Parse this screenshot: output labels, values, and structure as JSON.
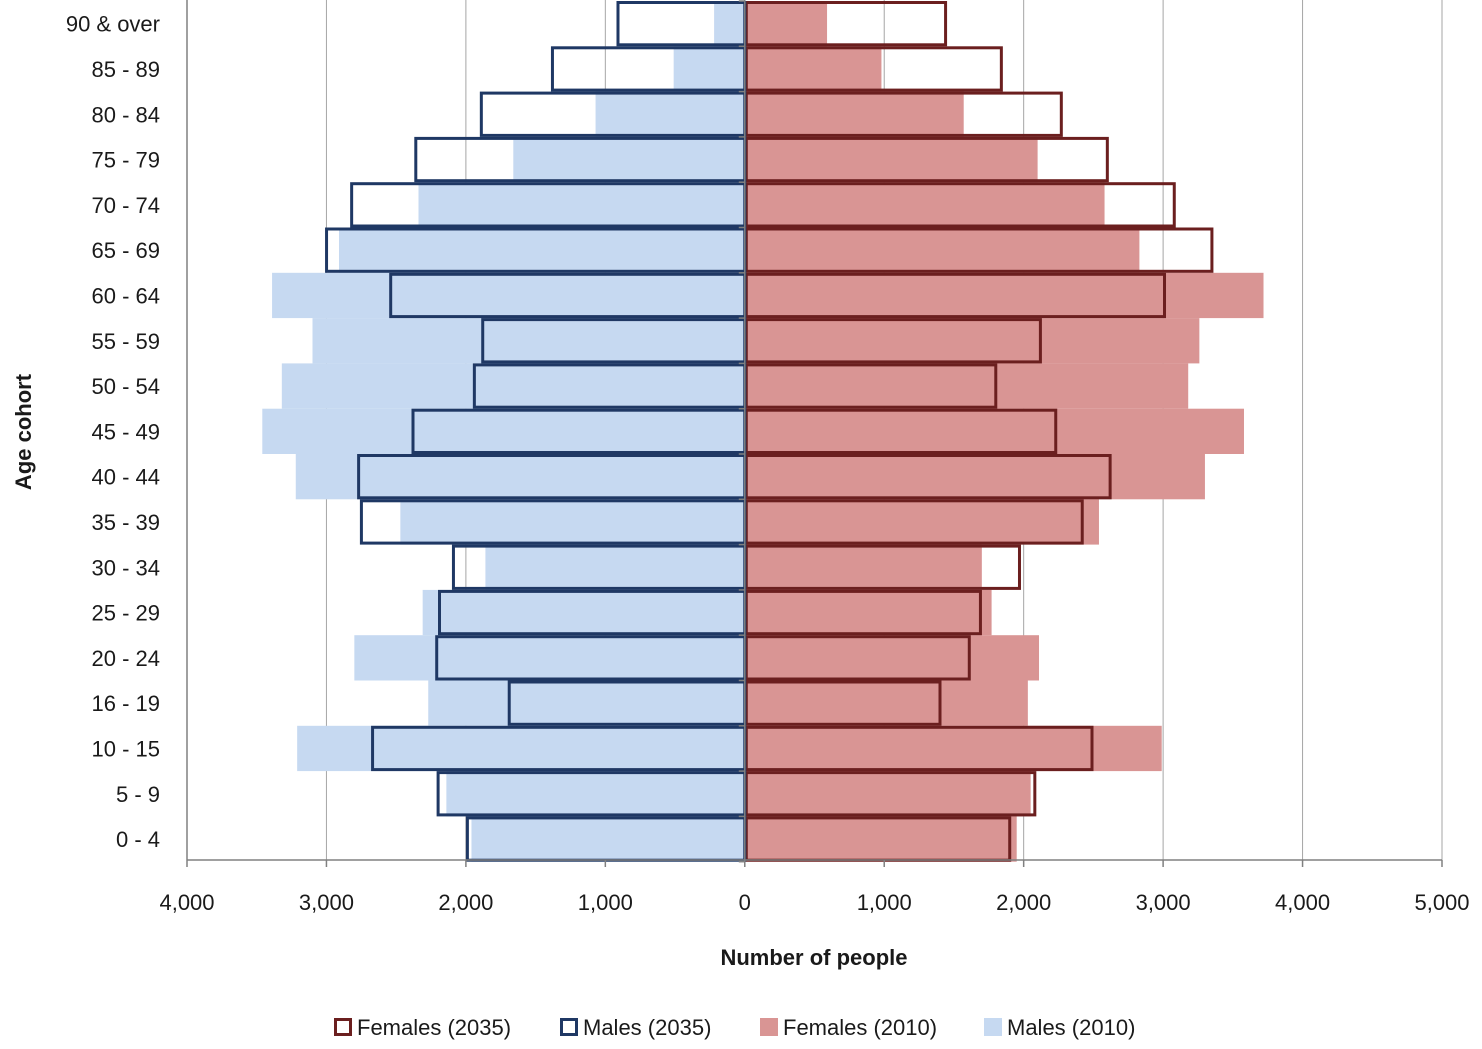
{
  "chart_data": {
    "type": "bar",
    "orientation": "horizontal",
    "xlabel": "Number of people",
    "ylabel": "Age cohort",
    "xlim": [
      -4000,
      5000
    ],
    "x_ticks": [
      -4000,
      -3000,
      -2000,
      -1000,
      0,
      1000,
      2000,
      3000,
      4000,
      5000
    ],
    "x_tick_labels": [
      "4,000",
      "3,000",
      "2,000",
      "1,000",
      "0",
      "1,000",
      "2,000",
      "3,000",
      "4,000",
      "5,000"
    ],
    "grid": "vertical",
    "legend_position": "bottom",
    "categories": [
      "0 - 4",
      "5 - 9",
      "10 - 15",
      "16 - 19",
      "20 - 24",
      "25 - 29",
      "30 - 34",
      "35 - 39",
      "40 - 44",
      "45 - 49",
      "50 - 54",
      "55 - 59",
      "60 - 64",
      "65 - 69",
      "70 - 74",
      "75 - 79",
      "80 - 84",
      "85 - 89",
      "90 & over"
    ],
    "series": [
      {
        "name": "Females (2035)",
        "side": "right",
        "style": "outline",
        "color": "#6b1f1f",
        "values": [
          1900,
          2080,
          2490,
          1400,
          1610,
          1690,
          1970,
          2420,
          2620,
          2230,
          1800,
          2120,
          3010,
          3350,
          3080,
          2600,
          2270,
          1840,
          1440
        ]
      },
      {
        "name": "Males (2035)",
        "side": "left",
        "style": "outline",
        "color": "#1f3864",
        "values": [
          2000,
          2210,
          2680,
          1700,
          2220,
          2200,
          2100,
          2760,
          2780,
          2390,
          1950,
          1890,
          2550,
          3010,
          2830,
          2370,
          1900,
          1390,
          920
        ]
      },
      {
        "name": "Females (2010)",
        "side": "right",
        "style": "fill",
        "color": "#d99594",
        "values": [
          1950,
          2050,
          2990,
          2030,
          2110,
          1770,
          1700,
          2540,
          3300,
          3580,
          3180,
          3260,
          3720,
          2830,
          2580,
          2100,
          1570,
          980,
          590
        ]
      },
      {
        "name": "Males (2010)",
        "side": "left",
        "style": "fill",
        "color": "#c6d9f1",
        "values": [
          1960,
          2140,
          3210,
          2270,
          2800,
          2310,
          1860,
          2470,
          3220,
          3460,
          3320,
          3100,
          3390,
          2910,
          2340,
          1660,
          1070,
          510,
          220
        ]
      }
    ]
  }
}
